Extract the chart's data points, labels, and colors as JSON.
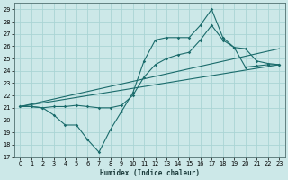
{
  "xlabel": "Humidex (Indice chaleur)",
  "bg_color": "#cce8e8",
  "line_color": "#1a6b6b",
  "grid_color": "#aad4d4",
  "xlim": [
    -0.5,
    23.5
  ],
  "ylim": [
    17,
    29.5
  ],
  "xticks": [
    0,
    1,
    2,
    3,
    4,
    5,
    6,
    7,
    8,
    9,
    10,
    11,
    12,
    13,
    14,
    15,
    16,
    17,
    18,
    19,
    20,
    21,
    22,
    23
  ],
  "yticks": [
    17,
    18,
    19,
    20,
    21,
    22,
    23,
    24,
    25,
    26,
    27,
    28,
    29
  ],
  "line_jagged": {
    "x": [
      0,
      1,
      2,
      3,
      4,
      5,
      6,
      7,
      8,
      9,
      10,
      11,
      12,
      13,
      14,
      15,
      16,
      17,
      18,
      19,
      20,
      21,
      22,
      23
    ],
    "y": [
      21.1,
      21.1,
      21.0,
      20.4,
      19.6,
      19.6,
      18.4,
      17.4,
      19.2,
      20.7,
      22.2,
      24.8,
      26.5,
      26.7,
      26.7,
      26.7,
      27.7,
      29.0,
      26.7,
      25.9,
      24.3,
      24.4,
      24.5,
      24.5
    ]
  },
  "line_upper": {
    "x": [
      0,
      1,
      2,
      3,
      4,
      5,
      6,
      7,
      8,
      9,
      10,
      11,
      12,
      13,
      14,
      15,
      16,
      17,
      18,
      19,
      20,
      21,
      22,
      23
    ],
    "y": [
      21.1,
      21.1,
      21.0,
      21.1,
      21.1,
      21.2,
      21.1,
      21.0,
      21.0,
      21.2,
      22.0,
      23.5,
      24.5,
      25.0,
      25.3,
      25.5,
      26.5,
      27.7,
      26.5,
      25.9,
      25.8,
      24.8,
      24.6,
      24.5
    ]
  },
  "line_mid": {
    "x": [
      0,
      23
    ],
    "y": [
      21.1,
      25.8
    ]
  },
  "line_low": {
    "x": [
      0,
      23
    ],
    "y": [
      21.1,
      24.5
    ]
  }
}
